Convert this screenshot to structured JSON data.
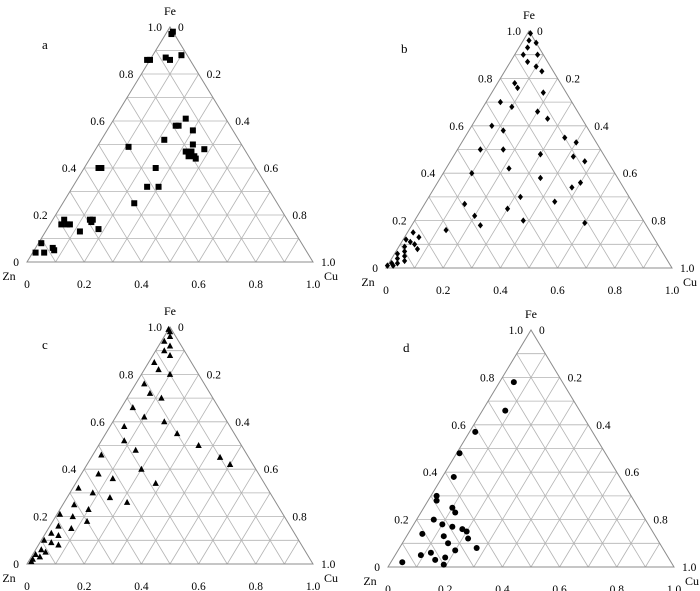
{
  "chart_data": [
    {
      "type": "scatter",
      "ternary": true,
      "panel_label": "a",
      "marker": "square",
      "axes": {
        "top": "Fe",
        "left": "Zn",
        "right": "Cu"
      },
      "fe_ticks": [
        "0",
        "0.2",
        "0.4",
        "0.6",
        "0.8",
        "1.0"
      ],
      "cu_ticks": [
        "0",
        "0.2",
        "0.4",
        "0.6",
        "0.8",
        "1.0"
      ],
      "zn_ticks": [
        "1.0",
        "0.8",
        "0.6",
        "0.4",
        "0.2",
        "0"
      ],
      "points": [
        {
          "fe": 0.98,
          "cu": 0.02
        },
        {
          "fe": 0.97,
          "cu": 0.02
        },
        {
          "fe": 0.86,
          "cu": 0.0
        },
        {
          "fe": 0.86,
          "cu": -0.01
        },
        {
          "fe": 0.87,
          "cu": 0.05
        },
        {
          "fe": 0.86,
          "cu": 0.07
        },
        {
          "fe": 0.88,
          "cu": 0.1
        },
        {
          "fe": 0.58,
          "cu": 0.23
        },
        {
          "fe": 0.58,
          "cu": 0.24
        },
        {
          "fe": 0.61,
          "cu": 0.25
        },
        {
          "fe": 0.56,
          "cu": 0.3
        },
        {
          "fe": 0.5,
          "cu": 0.33
        },
        {
          "fe": 0.47,
          "cu": 0.34
        },
        {
          "fe": 0.45,
          "cu": 0.34
        },
        {
          "fe": 0.47,
          "cu": 0.32
        },
        {
          "fe": 0.45,
          "cu": 0.36
        },
        {
          "fe": 0.48,
          "cu": 0.38
        },
        {
          "fe": 0.44,
          "cu": 0.37
        },
        {
          "fe": 0.52,
          "cu": 0.22
        },
        {
          "fe": 0.4,
          "cu": 0.25
        },
        {
          "fe": 0.49,
          "cu": 0.11
        },
        {
          "fe": 0.32,
          "cu": 0.3
        },
        {
          "fe": 0.32,
          "cu": 0.26
        },
        {
          "fe": 0.25,
          "cu": 0.25
        },
        {
          "fe": 0.4,
          "cu": 0.05
        },
        {
          "fe": 0.4,
          "cu": 0.06
        },
        {
          "fe": 0.18,
          "cu": 0.04
        },
        {
          "fe": 0.16,
          "cu": 0.04
        },
        {
          "fe": 0.16,
          "cu": 0.06
        },
        {
          "fe": 0.16,
          "cu": 0.07
        },
        {
          "fe": 0.18,
          "cu": 0.13
        },
        {
          "fe": 0.17,
          "cu": 0.14
        },
        {
          "fe": 0.18,
          "cu": 0.14
        },
        {
          "fe": 0.14,
          "cu": 0.18
        },
        {
          "fe": 0.13,
          "cu": 0.12
        },
        {
          "fe": 0.08,
          "cu": 0.01
        },
        {
          "fe": 0.04,
          "cu": 0.01
        },
        {
          "fe": 0.04,
          "cu": 0.04
        },
        {
          "fe": 0.06,
          "cu": 0.06
        },
        {
          "fe": 0.05,
          "cu": 0.07
        }
      ]
    },
    {
      "type": "scatter",
      "ternary": true,
      "panel_label": "b",
      "marker": "diamond",
      "axes": {
        "top": "Fe",
        "left": "Zn",
        "right": "Cu"
      },
      "fe_ticks": [
        "0",
        "0.2",
        "0.4",
        "0.6",
        "0.8",
        "1.0"
      ],
      "cu_ticks": [
        "0",
        "0.2",
        "0.4",
        "0.6",
        "0.8",
        "1.0"
      ],
      "zn_ticks": [
        "1.0",
        "0.8",
        "0.6",
        "0.4",
        "0.2",
        "0"
      ],
      "points": [
        {
          "fe": 0.99,
          "cu": 0.01
        },
        {
          "fe": 0.96,
          "cu": 0.02
        },
        {
          "fe": 0.95,
          "cu": 0.05
        },
        {
          "fe": 0.93,
          "cu": 0.03
        },
        {
          "fe": 0.9,
          "cu": 0.03
        },
        {
          "fe": 0.9,
          "cu": 0.08
        },
        {
          "fe": 0.87,
          "cu": 0.06
        },
        {
          "fe": 0.85,
          "cu": 0.1
        },
        {
          "fe": 0.83,
          "cu": 0.13
        },
        {
          "fe": 0.78,
          "cu": 0.06
        },
        {
          "fe": 0.76,
          "cu": 0.08
        },
        {
          "fe": 0.74,
          "cu": 0.18
        },
        {
          "fe": 0.7,
          "cu": 0.05
        },
        {
          "fe": 0.68,
          "cu": 0.1
        },
        {
          "fe": 0.66,
          "cu": 0.2
        },
        {
          "fe": 0.63,
          "cu": 0.25
        },
        {
          "fe": 0.6,
          "cu": 0.07
        },
        {
          "fe": 0.58,
          "cu": 0.12
        },
        {
          "fe": 0.55,
          "cu": 0.35
        },
        {
          "fe": 0.53,
          "cu": 0.4
        },
        {
          "fe": 0.5,
          "cu": 0.08
        },
        {
          "fe": 0.5,
          "cu": 0.16
        },
        {
          "fe": 0.48,
          "cu": 0.3
        },
        {
          "fe": 0.47,
          "cu": 0.42
        },
        {
          "fe": 0.45,
          "cu": 0.47
        },
        {
          "fe": 0.42,
          "cu": 0.22
        },
        {
          "fe": 0.4,
          "cu": 0.1
        },
        {
          "fe": 0.38,
          "cu": 0.35
        },
        {
          "fe": 0.36,
          "cu": 0.5
        },
        {
          "fe": 0.34,
          "cu": 0.48
        },
        {
          "fe": 0.3,
          "cu": 0.32
        },
        {
          "fe": 0.28,
          "cu": 0.45
        },
        {
          "fe": 0.27,
          "cu": 0.14
        },
        {
          "fe": 0.25,
          "cu": 0.3
        },
        {
          "fe": 0.22,
          "cu": 0.2
        },
        {
          "fe": 0.2,
          "cu": 0.38
        },
        {
          "fe": 0.19,
          "cu": 0.6
        },
        {
          "fe": 0.18,
          "cu": 0.24
        },
        {
          "fe": 0.16,
          "cu": 0.13
        },
        {
          "fe": 0.15,
          "cu": 0.02
        },
        {
          "fe": 0.13,
          "cu": 0.05
        },
        {
          "fe": 0.12,
          "cu": 0.01
        },
        {
          "fe": 0.11,
          "cu": 0.03
        },
        {
          "fe": 0.1,
          "cu": 0.05
        },
        {
          "fe": 0.09,
          "cu": 0.02
        },
        {
          "fe": 0.08,
          "cu": 0.07
        },
        {
          "fe": 0.07,
          "cu": 0.03
        },
        {
          "fe": 0.06,
          "cu": 0.01
        },
        {
          "fe": 0.05,
          "cu": 0.04
        },
        {
          "fe": 0.04,
          "cu": 0.02
        },
        {
          "fe": 0.03,
          "cu": 0.05
        },
        {
          "fe": 0.02,
          "cu": 0.01
        },
        {
          "fe": 0.02,
          "cu": 0.03
        },
        {
          "fe": 0.01,
          "cu": 0.02
        },
        {
          "fe": 0.01,
          "cu": 0.0
        }
      ]
    },
    {
      "type": "scatter",
      "ternary": true,
      "panel_label": "c",
      "marker": "triangle",
      "axes": {
        "top": "Fe",
        "left": "Zn",
        "right": "Cu"
      },
      "fe_ticks": [
        "0",
        "0.2",
        "0.4",
        "0.6",
        "0.8",
        "1.0"
      ],
      "cu_ticks": [
        "0",
        "0.2",
        "0.4",
        "0.6",
        "0.8",
        "1.0"
      ],
      "zn_ticks": [
        "1.0",
        "0.8",
        "0.6",
        "0.4",
        "0.2",
        "0"
      ],
      "points": [
        {
          "fe": 0.99,
          "cu": 0.0
        },
        {
          "fe": 0.98,
          "cu": 0.01
        },
        {
          "fe": 0.96,
          "cu": 0.02
        },
        {
          "fe": 0.94,
          "cu": 0.01
        },
        {
          "fe": 0.92,
          "cu": 0.04
        },
        {
          "fe": 0.9,
          "cu": 0.03
        },
        {
          "fe": 0.88,
          "cu": 0.06
        },
        {
          "fe": 0.85,
          "cu": 0.02
        },
        {
          "fe": 0.82,
          "cu": 0.05
        },
        {
          "fe": 0.8,
          "cu": 0.1
        },
        {
          "fe": 0.76,
          "cu": 0.03
        },
        {
          "fe": 0.72,
          "cu": 0.07
        },
        {
          "fe": 0.7,
          "cu": 0.12
        },
        {
          "fe": 0.66,
          "cu": 0.04
        },
        {
          "fe": 0.62,
          "cu": 0.1
        },
        {
          "fe": 0.6,
          "cu": 0.18
        },
        {
          "fe": 0.58,
          "cu": 0.05
        },
        {
          "fe": 0.55,
          "cu": 0.25
        },
        {
          "fe": 0.52,
          "cu": 0.08
        },
        {
          "fe": 0.5,
          "cu": 0.35
        },
        {
          "fe": 0.48,
          "cu": 0.14
        },
        {
          "fe": 0.46,
          "cu": 0.03
        },
        {
          "fe": 0.45,
          "cu": 0.45
        },
        {
          "fe": 0.42,
          "cu": 0.5
        },
        {
          "fe": 0.4,
          "cu": 0.2
        },
        {
          "fe": 0.38,
          "cu": 0.06
        },
        {
          "fe": 0.36,
          "cu": 0.12
        },
        {
          "fe": 0.34,
          "cu": 0.28
        },
        {
          "fe": 0.32,
          "cu": 0.02
        },
        {
          "fe": 0.3,
          "cu": 0.08
        },
        {
          "fe": 0.28,
          "cu": 0.15
        },
        {
          "fe": 0.26,
          "cu": 0.22
        },
        {
          "fe": 0.25,
          "cu": 0.04
        },
        {
          "fe": 0.23,
          "cu": 0.1
        },
        {
          "fe": 0.21,
          "cu": 0.01
        },
        {
          "fe": 0.2,
          "cu": 0.06
        },
        {
          "fe": 0.18,
          "cu": 0.12
        },
        {
          "fe": 0.16,
          "cu": 0.03
        },
        {
          "fe": 0.15,
          "cu": 0.08
        },
        {
          "fe": 0.13,
          "cu": 0.02
        },
        {
          "fe": 0.12,
          "cu": 0.05
        },
        {
          "fe": 0.1,
          "cu": 0.01
        },
        {
          "fe": 0.09,
          "cu": 0.04
        },
        {
          "fe": 0.08,
          "cu": 0.07
        },
        {
          "fe": 0.06,
          "cu": 0.02
        },
        {
          "fe": 0.05,
          "cu": 0.04
        },
        {
          "fe": 0.04,
          "cu": 0.01
        },
        {
          "fe": 0.03,
          "cu": 0.03
        },
        {
          "fe": 0.02,
          "cu": 0.01
        },
        {
          "fe": 0.01,
          "cu": 0.01
        }
      ]
    },
    {
      "type": "scatter",
      "ternary": true,
      "panel_label": "d",
      "marker": "circle",
      "axes": {
        "top": "Fe",
        "left": "Zn",
        "right": "Cu"
      },
      "fe_ticks": [
        "0",
        "0.2",
        "0.4",
        "0.6",
        "0.8",
        "1.0"
      ],
      "cu_ticks": [
        "0",
        "0.2",
        "0.4",
        "0.6",
        "0.8",
        "1.0"
      ],
      "zn_ticks": [
        "1.0",
        "0.8",
        "0.6",
        "0.4",
        "0.2",
        "0"
      ],
      "points": [
        {
          "fe": 0.78,
          "cu": 0.05
        },
        {
          "fe": 0.66,
          "cu": 0.08
        },
        {
          "fe": 0.57,
          "cu": 0.02
        },
        {
          "fe": 0.48,
          "cu": 0.01
        },
        {
          "fe": 0.38,
          "cu": 0.04
        },
        {
          "fe": 0.3,
          "cu": 0.02
        },
        {
          "fe": 0.28,
          "cu": 0.03
        },
        {
          "fe": 0.25,
          "cu": 0.1
        },
        {
          "fe": 0.23,
          "cu": 0.12
        },
        {
          "fe": 0.2,
          "cu": 0.06
        },
        {
          "fe": 0.18,
          "cu": 0.1
        },
        {
          "fe": 0.17,
          "cu": 0.14
        },
        {
          "fe": 0.16,
          "cu": 0.18
        },
        {
          "fe": 0.15,
          "cu": 0.2
        },
        {
          "fe": 0.14,
          "cu": 0.05
        },
        {
          "fe": 0.13,
          "cu": 0.13
        },
        {
          "fe": 0.12,
          "cu": 0.22
        },
        {
          "fe": 0.1,
          "cu": 0.16
        },
        {
          "fe": 0.08,
          "cu": 0.27
        },
        {
          "fe": 0.07,
          "cu": 0.2
        },
        {
          "fe": 0.06,
          "cu": 0.12
        },
        {
          "fe": 0.05,
          "cu": 0.09
        },
        {
          "fe": 0.04,
          "cu": 0.18
        },
        {
          "fe": 0.03,
          "cu": 0.15
        },
        {
          "fe": 0.02,
          "cu": 0.04
        },
        {
          "fe": 0.01,
          "cu": 0.19
        }
      ]
    }
  ]
}
